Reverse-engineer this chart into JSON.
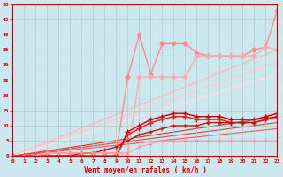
{
  "background_color": "#cce8ee",
  "grid_color": "#aacccc",
  "xlabel": "Vent moyen/en rafales ( km/h )",
  "xlim": [
    0,
    23
  ],
  "ylim": [
    0,
    50
  ],
  "xticks": [
    0,
    1,
    2,
    3,
    4,
    5,
    6,
    7,
    8,
    9,
    10,
    11,
    12,
    13,
    14,
    15,
    16,
    17,
    18,
    19,
    20,
    21,
    22,
    23
  ],
  "yticks": [
    0,
    5,
    10,
    15,
    20,
    25,
    30,
    35,
    40,
    45,
    50
  ],
  "lines": [
    {
      "x": [
        0,
        1,
        2,
        3,
        4,
        5,
        6,
        7,
        8,
        9,
        10,
        11,
        12,
        13,
        14,
        15,
        16,
        17,
        18,
        19,
        20,
        21,
        22,
        23
      ],
      "y": [
        0,
        0,
        0,
        1,
        1,
        1,
        1,
        1,
        1,
        1,
        26,
        40,
        27,
        37,
        37,
        37,
        34,
        33,
        33,
        33,
        33,
        35,
        36,
        48
      ],
      "color": "#ff8888",
      "marker": "D",
      "ms": 2.5,
      "lw": 1.0
    },
    {
      "x": [
        0,
        1,
        2,
        3,
        4,
        5,
        6,
        7,
        8,
        9,
        10,
        11,
        12,
        13,
        14,
        15,
        16,
        17,
        18,
        19,
        20,
        21,
        22,
        23
      ],
      "y": [
        0,
        0,
        0,
        1,
        1,
        1,
        1,
        1,
        1,
        1,
        0,
        26,
        26,
        26,
        26,
        26,
        33,
        33,
        33,
        33,
        33,
        33,
        36,
        35
      ],
      "color": "#ffaaaa",
      "marker": "D",
      "ms": 2.5,
      "lw": 1.0
    },
    {
      "x": [
        0,
        23
      ],
      "y": [
        0,
        35
      ],
      "color": "#ffbbbb",
      "marker": null,
      "ms": 0,
      "lw": 1.0
    },
    {
      "x": [
        0,
        23
      ],
      "y": [
        0,
        31
      ],
      "color": "#ffcccc",
      "marker": null,
      "ms": 0,
      "lw": 1.0
    },
    {
      "x": [
        0,
        23
      ],
      "y": [
        0,
        27
      ],
      "color": "#ffdddd",
      "marker": null,
      "ms": 0,
      "lw": 1.0
    },
    {
      "x": [
        0,
        1,
        2,
        3,
        4,
        5,
        6,
        7,
        8,
        9,
        10,
        11,
        12,
        13,
        14,
        15,
        16,
        17,
        18,
        19,
        20,
        21,
        22,
        23
      ],
      "y": [
        0,
        0,
        0,
        0,
        0,
        0,
        0,
        0,
        0,
        0,
        8,
        10,
        12,
        13,
        14,
        14,
        13,
        13,
        13,
        12,
        12,
        12,
        13,
        14
      ],
      "color": "#cc0000",
      "marker": "+",
      "ms": 4,
      "lw": 1.0
    },
    {
      "x": [
        0,
        1,
        2,
        3,
        4,
        5,
        6,
        7,
        8,
        9,
        10,
        11,
        12,
        13,
        14,
        15,
        16,
        17,
        18,
        19,
        20,
        21,
        22,
        23
      ],
      "y": [
        0,
        0,
        0,
        0,
        0,
        0,
        0,
        0,
        0,
        0,
        7,
        9,
        11,
        12,
        13,
        13,
        12,
        12,
        12,
        11,
        11,
        11,
        12,
        13
      ],
      "color": "#dd2222",
      "marker": "+",
      "ms": 4,
      "lw": 1.0
    },
    {
      "x": [
        0,
        1,
        2,
        3,
        4,
        5,
        6,
        7,
        8,
        9,
        10,
        11,
        12,
        13,
        14,
        15,
        16,
        17,
        18,
        19,
        20,
        21,
        22,
        23
      ],
      "y": [
        0,
        0,
        0,
        0,
        0,
        0,
        1,
        1,
        2,
        3,
        5,
        7,
        8,
        9,
        10,
        10,
        10,
        11,
        11,
        11,
        11,
        11,
        12,
        13
      ],
      "color": "#cc1111",
      "marker": "+",
      "ms": 3,
      "lw": 1.0
    },
    {
      "x": [
        0,
        23
      ],
      "y": [
        0,
        13
      ],
      "color": "#cc3333",
      "marker": null,
      "ms": 0,
      "lw": 0.8
    },
    {
      "x": [
        0,
        23
      ],
      "y": [
        0,
        11
      ],
      "color": "#dd4444",
      "marker": null,
      "ms": 0,
      "lw": 0.8
    },
    {
      "x": [
        0,
        23
      ],
      "y": [
        0,
        9
      ],
      "color": "#ee5555",
      "marker": null,
      "ms": 0,
      "lw": 0.8
    },
    {
      "x": [
        0,
        1,
        2,
        3,
        4,
        5,
        6,
        7,
        8,
        9,
        10,
        11,
        12,
        13,
        14,
        15,
        16,
        17,
        18,
        19,
        20,
        21,
        22,
        23
      ],
      "y": [
        0,
        0,
        0,
        1,
        1,
        1,
        1,
        1,
        1,
        1,
        1,
        3,
        4,
        5,
        5,
        5,
        5,
        5,
        5,
        5,
        5,
        5,
        5,
        5
      ],
      "color": "#ff9999",
      "marker": "+",
      "ms": 3,
      "lw": 0.8
    }
  ],
  "axis_color": "#cc0000",
  "tick_color": "#cc0000",
  "label_color": "#cc0000"
}
